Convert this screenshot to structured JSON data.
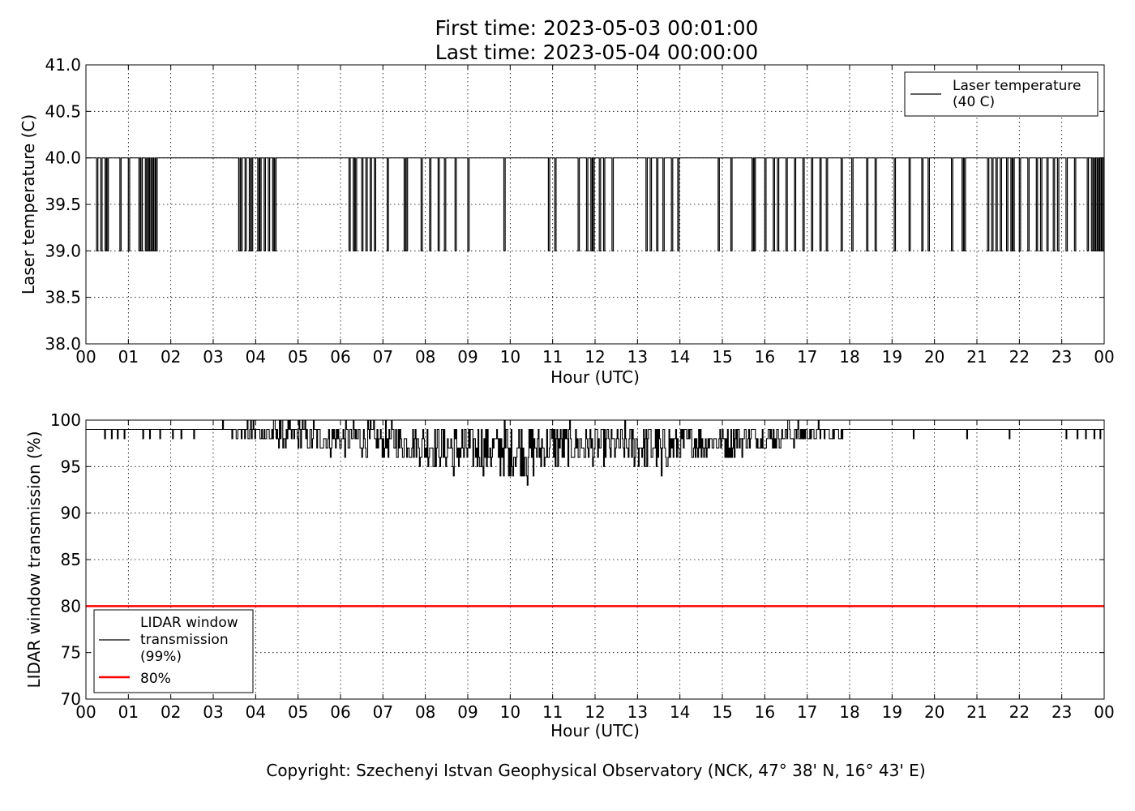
{
  "title": {
    "line1": "First time: 2023-05-03 00:01:00",
    "line2": "Last time: 2023-05-04 00:00:00"
  },
  "footer": {
    "copyright": "Copyright: Szechenyi Istvan Geophysical Observatory (NCK, 47° 38' N, 16° 43' E)"
  },
  "chart_data": [
    {
      "type": "line",
      "title": "",
      "xlabel": "Hour (UTC)",
      "ylabel": "Laser temperature (C)",
      "xlim": [
        0,
        24
      ],
      "ylim": [
        38.0,
        41.0
      ],
      "grid": true,
      "legend_position": "top-right",
      "x_ticks": [
        "00",
        "01",
        "02",
        "03",
        "04",
        "05",
        "06",
        "07",
        "08",
        "09",
        "10",
        "11",
        "12",
        "13",
        "14",
        "15",
        "16",
        "17",
        "18",
        "19",
        "20",
        "21",
        "22",
        "23",
        "00"
      ],
      "y_ticks": [
        "38.0",
        "38.5",
        "39.0",
        "39.5",
        "40.0",
        "40.5",
        "41.0"
      ],
      "series": [
        {
          "name": "Laser temperature (40 C)",
          "color": "#000000",
          "baseline": 40.0,
          "dip_value": 39.0,
          "dips_hours": [
            0.25,
            0.35,
            0.45,
            0.5,
            0.8,
            1.0,
            1.25,
            1.3,
            1.4,
            1.45,
            1.5,
            1.55,
            1.6,
            1.65,
            3.6,
            3.65,
            3.75,
            3.85,
            3.9,
            4.05,
            4.1,
            4.2,
            4.3,
            4.4,
            4.45,
            6.2,
            6.3,
            6.35,
            6.5,
            6.6,
            6.7,
            6.8,
            7.1,
            7.5,
            7.55,
            7.9,
            8.1,
            8.3,
            8.45,
            8.7,
            9.0,
            9.85,
            10.9,
            11.05,
            11.6,
            11.8,
            11.9,
            11.95,
            12.1,
            12.2,
            12.4,
            13.2,
            13.3,
            13.45,
            13.6,
            13.8,
            13.95,
            14.9,
            15.2,
            15.7,
            15.75,
            16.0,
            16.2,
            16.3,
            16.5,
            16.7,
            16.9,
            17.1,
            17.3,
            17.45,
            17.8,
            18.05,
            18.4,
            18.6,
            19.05,
            19.4,
            19.7,
            19.85,
            20.4,
            20.65,
            20.7,
            21.25,
            21.35,
            21.45,
            21.55,
            21.7,
            21.8,
            21.85,
            22.0,
            22.2,
            22.4,
            22.5,
            22.65,
            22.8,
            22.9,
            23.1,
            23.3,
            23.6,
            23.7,
            23.75,
            23.8,
            23.85,
            23.9,
            23.95
          ]
        }
      ]
    },
    {
      "type": "line",
      "title": "",
      "xlabel": "Hour (UTC)",
      "ylabel": "LIDAR window transmission (%)",
      "xlim": [
        0,
        24
      ],
      "ylim": [
        70,
        100
      ],
      "grid": true,
      "legend_position": "bottom-left",
      "x_ticks": [
        "00",
        "01",
        "02",
        "03",
        "04",
        "05",
        "06",
        "07",
        "08",
        "09",
        "10",
        "11",
        "12",
        "13",
        "14",
        "15",
        "16",
        "17",
        "18",
        "19",
        "20",
        "21",
        "22",
        "23",
        "00"
      ],
      "y_ticks": [
        "70",
        "75",
        "80",
        "85",
        "90",
        "95",
        "100"
      ],
      "series": [
        {
          "name": "LIDAR window transmission (99%)",
          "color": "#000000",
          "baseline": 99,
          "profile_hours": [
            0,
            3.5,
            4.0,
            5.0,
            6.0,
            7.0,
            8.0,
            8.5,
            9.0,
            10.0,
            10.5,
            11.0,
            12.0,
            13.0,
            13.5,
            14.0,
            15.0,
            16.0,
            17.0,
            18.5,
            24
          ],
          "profile_mean": [
            99,
            99,
            98.6,
            98.2,
            98.0,
            97.8,
            97.5,
            97.0,
            97.0,
            97.0,
            96.8,
            97.2,
            97.3,
            97.3,
            97.2,
            97.5,
            97.8,
            98.2,
            98.6,
            99,
            99
          ],
          "profile_spread": [
            0,
            0.6,
            1.0,
            1.6,
            1.8,
            1.8,
            2.2,
            2.6,
            2.6,
            2.8,
            2.8,
            2.4,
            2.2,
            2.4,
            2.4,
            2.0,
            1.8,
            1.6,
            1.0,
            0,
            0
          ],
          "isolated_drops": [
            {
              "x": 0.45,
              "y": 98
            },
            {
              "x": 0.6,
              "y": 98
            },
            {
              "x": 0.75,
              "y": 98
            },
            {
              "x": 0.9,
              "y": 98
            },
            {
              "x": 1.35,
              "y": 98
            },
            {
              "x": 1.5,
              "y": 98
            },
            {
              "x": 1.75,
              "y": 98
            },
            {
              "x": 2.05,
              "y": 98
            },
            {
              "x": 2.25,
              "y": 98
            },
            {
              "x": 2.55,
              "y": 98
            },
            {
              "x": 19.5,
              "y": 98
            },
            {
              "x": 20.75,
              "y": 98
            },
            {
              "x": 21.75,
              "y": 98
            },
            {
              "x": 23.1,
              "y": 98
            },
            {
              "x": 23.35,
              "y": 98
            },
            {
              "x": 23.55,
              "y": 98
            },
            {
              "x": 23.75,
              "y": 98
            },
            {
              "x": 23.9,
              "y": 98
            }
          ],
          "spikes": [
            {
              "x": 3.95,
              "y": 100
            },
            {
              "x": 4.55,
              "y": 100
            },
            {
              "x": 4.75,
              "y": 100
            },
            {
              "x": 5.1,
              "y": 100
            },
            {
              "x": 5.35,
              "y": 100
            },
            {
              "x": 8.65,
              "y": 94
            },
            {
              "x": 9.75,
              "y": 94
            },
            {
              "x": 9.95,
              "y": 94
            },
            {
              "x": 10.4,
              "y": 93
            },
            {
              "x": 13.55,
              "y": 94
            },
            {
              "x": 16.55,
              "y": 100
            },
            {
              "x": 17.25,
              "y": 100
            }
          ]
        },
        {
          "name": "80%",
          "color": "#ff0000",
          "x": [
            0,
            24
          ],
          "values": [
            80,
            80
          ]
        }
      ]
    }
  ]
}
